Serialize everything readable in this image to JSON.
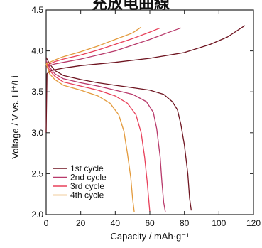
{
  "header": {
    "cropped_title": "充放电曲線"
  },
  "chart_data": {
    "type": "line",
    "xlabel": "Capacity / mAh·g⁻¹",
    "ylabel": "Voltage / V vs. Li⁺/Li",
    "xlim": [
      0,
      120
    ],
    "ylim": [
      2.0,
      4.5
    ],
    "xticks": [
      0,
      20,
      40,
      60,
      80,
      100,
      120
    ],
    "yticks": [
      2.0,
      2.5,
      3.0,
      3.5,
      4.0,
      4.5
    ],
    "legend_position": "bottom-left",
    "grid": false,
    "series": [
      {
        "name": "1st cycle",
        "color": "#6e1420",
        "charge": [
          [
            0,
            3.0
          ],
          [
            0.5,
            3.72
          ],
          [
            2,
            3.75
          ],
          [
            5,
            3.77
          ],
          [
            10,
            3.79
          ],
          [
            20,
            3.82
          ],
          [
            40,
            3.86
          ],
          [
            60,
            3.91
          ],
          [
            80,
            3.98
          ],
          [
            95,
            4.08
          ],
          [
            105,
            4.17
          ],
          [
            115,
            4.31
          ]
        ],
        "discharge": [
          [
            0,
            3.92
          ],
          [
            2,
            3.84
          ],
          [
            5,
            3.76
          ],
          [
            10,
            3.7
          ],
          [
            20,
            3.65
          ],
          [
            30,
            3.61
          ],
          [
            40,
            3.58
          ],
          [
            50,
            3.55
          ],
          [
            60,
            3.52
          ],
          [
            68,
            3.47
          ],
          [
            73,
            3.38
          ],
          [
            76,
            3.28
          ],
          [
            78,
            3.1
          ],
          [
            80,
            2.85
          ],
          [
            82,
            2.5
          ],
          [
            83,
            2.2
          ],
          [
            84,
            2.05
          ]
        ]
      },
      {
        "name": "2nd cycle",
        "color": "#b83a6b",
        "charge": [
          [
            0,
            3.8
          ],
          [
            2,
            3.82
          ],
          [
            5,
            3.84
          ],
          [
            10,
            3.86
          ],
          [
            20,
            3.9
          ],
          [
            30,
            3.95
          ],
          [
            40,
            4.0
          ],
          [
            50,
            4.07
          ],
          [
            60,
            4.14
          ],
          [
            70,
            4.22
          ],
          [
            78,
            4.28
          ]
        ],
        "discharge": [
          [
            0,
            3.88
          ],
          [
            2,
            3.8
          ],
          [
            5,
            3.72
          ],
          [
            10,
            3.66
          ],
          [
            20,
            3.61
          ],
          [
            30,
            3.57
          ],
          [
            40,
            3.52
          ],
          [
            50,
            3.47
          ],
          [
            58,
            3.38
          ],
          [
            62,
            3.25
          ],
          [
            64,
            3.05
          ],
          [
            66,
            2.7
          ],
          [
            67,
            2.4
          ],
          [
            68,
            2.15
          ],
          [
            69,
            2.03
          ]
        ]
      },
      {
        "name": "3rd cycle",
        "color": "#e8405a",
        "charge": [
          [
            0,
            3.82
          ],
          [
            2,
            3.84
          ],
          [
            5,
            3.87
          ],
          [
            10,
            3.9
          ],
          [
            20,
            3.95
          ],
          [
            30,
            4.01
          ],
          [
            40,
            4.08
          ],
          [
            50,
            4.15
          ],
          [
            60,
            4.23
          ],
          [
            66,
            4.28
          ]
        ],
        "discharge": [
          [
            0,
            3.86
          ],
          [
            2,
            3.76
          ],
          [
            5,
            3.69
          ],
          [
            10,
            3.62
          ],
          [
            20,
            3.57
          ],
          [
            30,
            3.52
          ],
          [
            40,
            3.45
          ],
          [
            47,
            3.36
          ],
          [
            52,
            3.22
          ],
          [
            55,
            3.0
          ],
          [
            57,
            2.7
          ],
          [
            58.5,
            2.4
          ],
          [
            59.5,
            2.15
          ],
          [
            60,
            2.03
          ]
        ]
      },
      {
        "name": "4th cycle",
        "color": "#e39a3c",
        "charge": [
          [
            0,
            3.84
          ],
          [
            2,
            3.86
          ],
          [
            5,
            3.89
          ],
          [
            10,
            3.93
          ],
          [
            20,
            3.99
          ],
          [
            30,
            4.06
          ],
          [
            40,
            4.14
          ],
          [
            50,
            4.22
          ],
          [
            55,
            4.29
          ]
        ],
        "discharge": [
          [
            0,
            3.84
          ],
          [
            2,
            3.72
          ],
          [
            5,
            3.65
          ],
          [
            10,
            3.58
          ],
          [
            20,
            3.52
          ],
          [
            30,
            3.45
          ],
          [
            37,
            3.36
          ],
          [
            42,
            3.22
          ],
          [
            45,
            3.02
          ],
          [
            47,
            2.75
          ],
          [
            49,
            2.45
          ],
          [
            50,
            2.2
          ],
          [
            51,
            2.03
          ]
        ]
      }
    ]
  }
}
